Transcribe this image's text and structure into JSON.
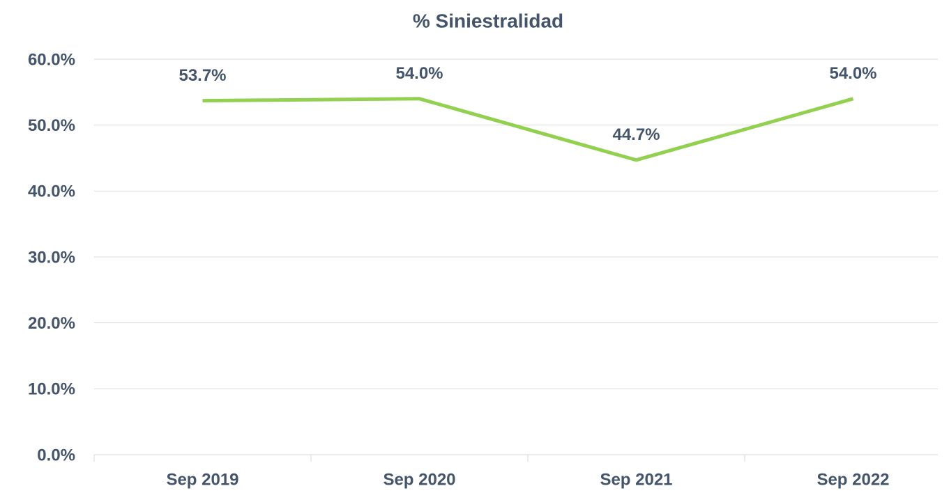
{
  "chart_data": {
    "type": "line",
    "title": "% Siniestralidad",
    "categories": [
      "Sep 2019",
      "Sep 2020",
      "Sep 2021",
      "Sep 2022"
    ],
    "series": [
      {
        "name": "% Siniestralidad",
        "color": "#92d050",
        "values": [
          53.7,
          54.0,
          44.7,
          54.0
        ],
        "value_labels": [
          "53.7%",
          "54.0%",
          "44.7%",
          "54.0%"
        ]
      }
    ],
    "ylim": [
      0,
      60
    ],
    "yticks": [
      {
        "value": 0,
        "label": "0.0%"
      },
      {
        "value": 10,
        "label": "10.0%"
      },
      {
        "value": 20,
        "label": "20.0%"
      },
      {
        "value": 30,
        "label": "30.0%"
      },
      {
        "value": 40,
        "label": "40.0%"
      },
      {
        "value": 50,
        "label": "50.0%"
      },
      {
        "value": 60,
        "label": "60.0%"
      }
    ],
    "grid": true
  }
}
